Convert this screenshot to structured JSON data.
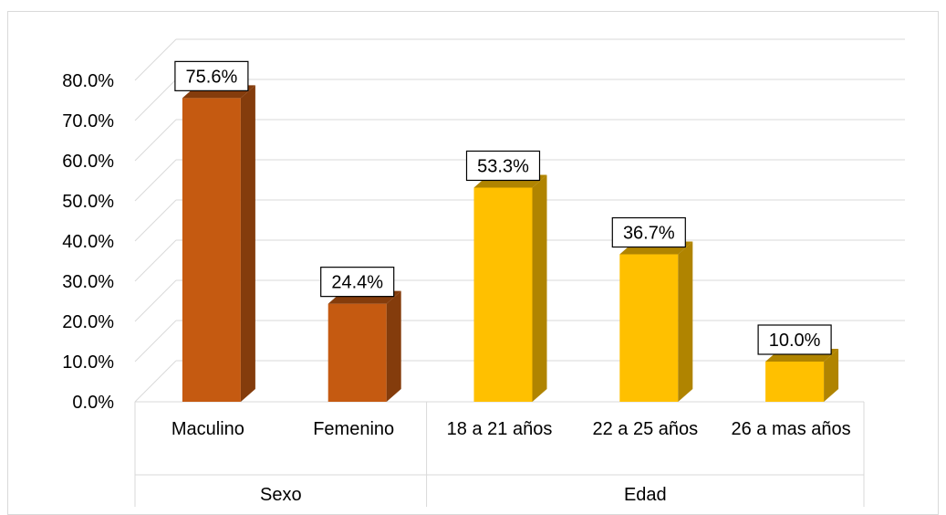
{
  "chart_data": {
    "type": "bar",
    "title": "",
    "xlabel": "",
    "ylabel": "",
    "ylim": [
      0,
      80
    ],
    "yticks": [
      "0.0%",
      "10.0%",
      "20.0%",
      "30.0%",
      "40.0%",
      "50.0%",
      "60.0%",
      "70.0%",
      "80.0%"
    ],
    "grid": true,
    "legend": "none",
    "groups": [
      {
        "label": "Sexo",
        "color": "#c55a11",
        "side_color": "#843c0c",
        "categories": [
          "Maculino",
          "Femenino"
        ],
        "values": [
          75.6,
          24.4
        ],
        "data_labels": [
          "75.6%",
          "24.4%"
        ]
      },
      {
        "label": "Edad",
        "color": "#ffc000",
        "side_color": "#b08400",
        "categories": [
          "18 a 21 años",
          "22 a 25 años",
          "26 a mas años"
        ],
        "values": [
          53.3,
          36.7,
          10.0
        ],
        "data_labels": [
          "53.3%",
          "36.7%",
          "10.0%"
        ]
      }
    ]
  }
}
